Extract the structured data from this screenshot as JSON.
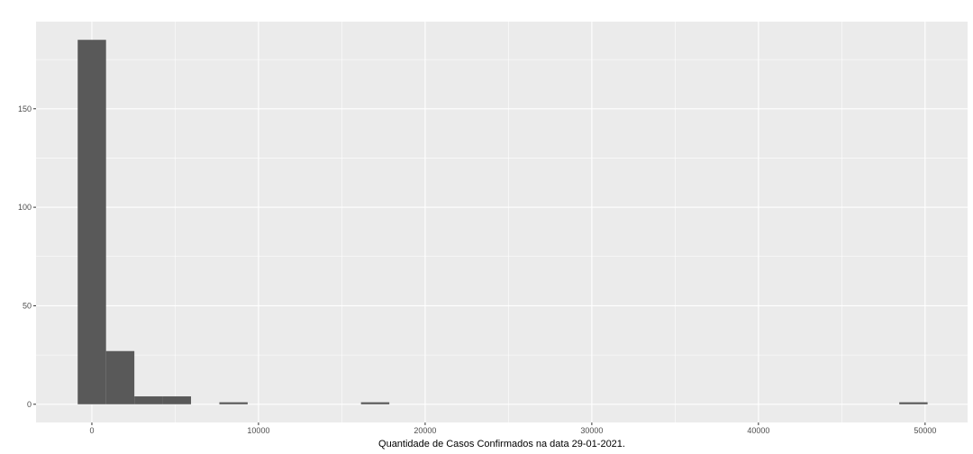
{
  "chart_data": {
    "type": "bar",
    "title": "",
    "xlabel": "Quantidade de Casos Confirmados na data 29-01-2021.",
    "ylabel": "",
    "xlim": [
      -3350,
      52550
    ],
    "ylim": [
      -9.25,
      194.25
    ],
    "x_ticks": [
      0,
      10000,
      20000,
      30000,
      40000,
      50000
    ],
    "x_tick_labels": [
      "0",
      "10000",
      "20000",
      "30000",
      "40000",
      "50000"
    ],
    "y_ticks": [
      0,
      50,
      100,
      150
    ],
    "y_tick_labels": [
      "0",
      "50",
      "100",
      "150"
    ],
    "bin_width": 1700,
    "bins": [
      {
        "x_start": -850,
        "x_end": 850,
        "count": 185
      },
      {
        "x_start": 850,
        "x_end": 2550,
        "count": 27
      },
      {
        "x_start": 2550,
        "x_end": 4250,
        "count": 4
      },
      {
        "x_start": 4250,
        "x_end": 5950,
        "count": 4
      },
      {
        "x_start": 7650,
        "x_end": 9350,
        "count": 1
      },
      {
        "x_start": 16150,
        "x_end": 17850,
        "count": 1
      },
      {
        "x_start": 48450,
        "x_end": 50150,
        "count": 1
      }
    ],
    "grid": true,
    "legend": "none",
    "colors": {
      "panel_background": "#EBEBEB",
      "grid_major": "#FFFFFF",
      "bar_fill": "#595959",
      "tick_text": "#4D4D4D",
      "tick_mark": "#333333"
    }
  }
}
